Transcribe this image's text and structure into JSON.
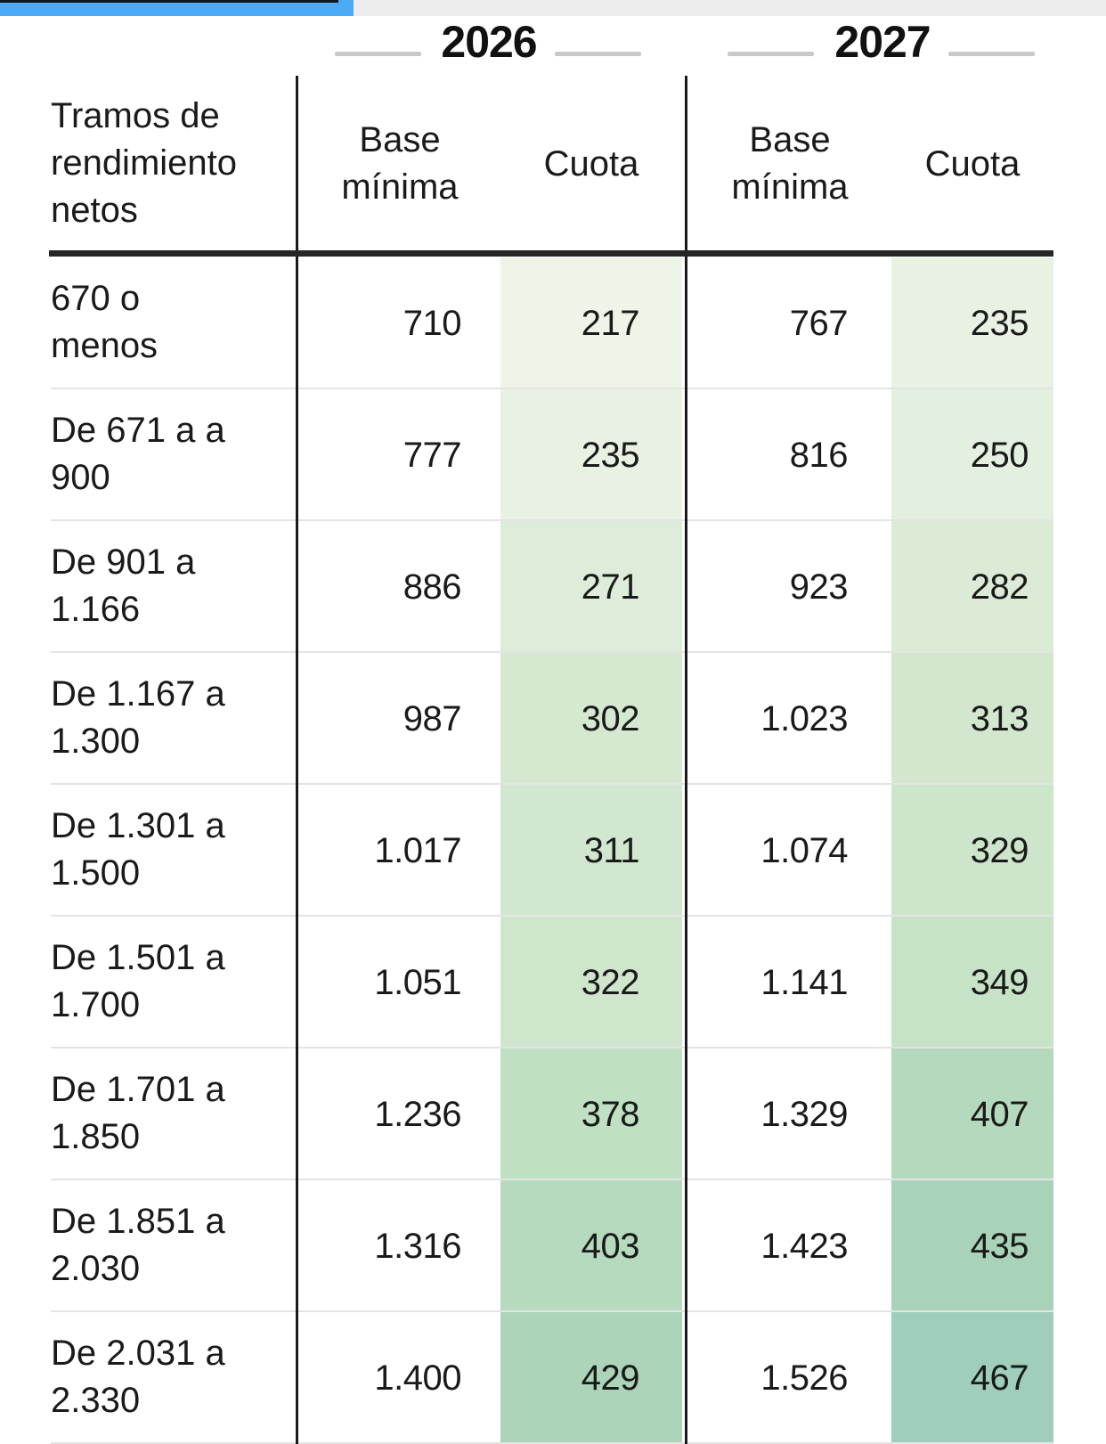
{
  "progress_bar": {
    "percent_complete": 32
  },
  "header": {
    "years": [
      "2026",
      "2027"
    ],
    "row_header_lines": [
      "Tramos de",
      "rendimiento",
      "netos"
    ],
    "col_header_base_lines": [
      "Base",
      "mínima"
    ],
    "col_header_cuota": "Cuota"
  },
  "colors": {
    "accent_blue": "#4dabf5",
    "track_gray": "#ededed",
    "divider_black": "#1a1a1a",
    "header_rule_black": "#262626",
    "row_separator_gray": "#e4e4e4",
    "year_dash_gray": "#c9c9c9",
    "heatmap_domain": [
      217,
      467
    ],
    "heatmap_stops": [
      [
        0,
        "#eef4e7"
      ],
      [
        0.42,
        "#cfe6cc"
      ],
      [
        0.644,
        "#bfe0c2"
      ],
      [
        0.848,
        "#abd4b8"
      ],
      [
        1,
        "#9fcfba"
      ]
    ]
  },
  "chart_data": {
    "type": "table",
    "title": "",
    "column_groups": [
      "2026",
      "2027"
    ],
    "columns": [
      "Tramos de rendimiento netos",
      "Base mínima (2026)",
      "Cuota (2026)",
      "Base mínima (2027)",
      "Cuota (2027)"
    ],
    "rows": [
      {
        "tramo_lines": [
          "670 o",
          "menos"
        ],
        "tramo": "670 o menos",
        "base_2026": "710",
        "cuota_2026": "217",
        "base_2027": "767",
        "cuota_2027": "235",
        "base_2026_value": 710,
        "cuota_2026_value": 217,
        "base_2027_value": 767,
        "cuota_2027_value": 235
      },
      {
        "tramo_lines": [
          "De 671 a a",
          "900"
        ],
        "tramo": "De 671 a a 900",
        "base_2026": "777",
        "cuota_2026": "235",
        "base_2027": "816",
        "cuota_2027": "250",
        "base_2026_value": 777,
        "cuota_2026_value": 235,
        "base_2027_value": 816,
        "cuota_2027_value": 250
      },
      {
        "tramo_lines": [
          "De 901 a",
          "1.166"
        ],
        "tramo": "De 901 a 1.166",
        "base_2026": "886",
        "cuota_2026": "271",
        "base_2027": "923",
        "cuota_2027": "282",
        "base_2026_value": 886,
        "cuota_2026_value": 271,
        "base_2027_value": 923,
        "cuota_2027_value": 282
      },
      {
        "tramo_lines": [
          "De 1.167 a",
          "1.300"
        ],
        "tramo": "De 1.167 a 1.300",
        "base_2026": "987",
        "cuota_2026": "302",
        "base_2027": "1.023",
        "cuota_2027": "313",
        "base_2026_value": 987,
        "cuota_2026_value": 302,
        "base_2027_value": 1023,
        "cuota_2027_value": 313
      },
      {
        "tramo_lines": [
          "De 1.301 a",
          "1.500"
        ],
        "tramo": "De 1.301 a 1.500",
        "base_2026": "1.017",
        "cuota_2026": "311",
        "base_2027": "1.074",
        "cuota_2027": "329",
        "base_2026_value": 1017,
        "cuota_2026_value": 311,
        "base_2027_value": 1074,
        "cuota_2027_value": 329
      },
      {
        "tramo_lines": [
          "De 1.501 a",
          "1.700"
        ],
        "tramo": "De 1.501 a 1.700",
        "base_2026": "1.051",
        "cuota_2026": "322",
        "base_2027": "1.141",
        "cuota_2027": "349",
        "base_2026_value": 1051,
        "cuota_2026_value": 322,
        "base_2027_value": 1141,
        "cuota_2027_value": 349
      },
      {
        "tramo_lines": [
          "De 1.701 a",
          "1.850"
        ],
        "tramo": "De 1.701 a 1.850",
        "base_2026": "1.236",
        "cuota_2026": "378",
        "base_2027": "1.329",
        "cuota_2027": "407",
        "base_2026_value": 1236,
        "cuota_2026_value": 378,
        "base_2027_value": 1329,
        "cuota_2027_value": 407
      },
      {
        "tramo_lines": [
          "De 1.851 a",
          "2.030"
        ],
        "tramo": "De 1.851 a 2.030",
        "base_2026": "1.316",
        "cuota_2026": "403",
        "base_2027": "1.423",
        "cuota_2027": "435",
        "base_2026_value": 1316,
        "cuota_2026_value": 403,
        "base_2027_value": 1423,
        "cuota_2027_value": 435
      },
      {
        "tramo_lines": [
          "De 2.031 a",
          "2.330"
        ],
        "tramo": "De 2.031 a 2.330",
        "base_2026": "1.400",
        "cuota_2026": "429",
        "base_2027": "1.526",
        "cuota_2027": "467",
        "base_2026_value": 1400,
        "cuota_2026_value": 429,
        "base_2027_value": 1526,
        "cuota_2027_value": 467
      }
    ]
  }
}
